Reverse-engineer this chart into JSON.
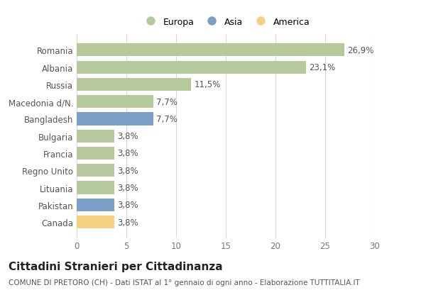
{
  "categories": [
    "Romania",
    "Albania",
    "Russia",
    "Macedonia d/N.",
    "Bangladesh",
    "Bulgaria",
    "Francia",
    "Regno Unito",
    "Lituania",
    "Pakistan",
    "Canada"
  ],
  "values": [
    26.9,
    23.1,
    11.5,
    7.7,
    7.7,
    3.8,
    3.8,
    3.8,
    3.8,
    3.8,
    3.8
  ],
  "labels": [
    "26,9%",
    "23,1%",
    "11,5%",
    "7,7%",
    "7,7%",
    "3,8%",
    "3,8%",
    "3,8%",
    "3,8%",
    "3,8%",
    "3,8%"
  ],
  "continent": [
    "Europa",
    "Europa",
    "Europa",
    "Europa",
    "Asia",
    "Europa",
    "Europa",
    "Europa",
    "Europa",
    "Asia",
    "America"
  ],
  "colors": {
    "Europa": "#b5c99a",
    "Asia": "#7b9fc7",
    "America": "#f5d080"
  },
  "title": "Cittadini Stranieri per Cittadinanza",
  "subtitle": "COMUNE DI PRETORO (CH) - Dati ISTAT al 1° gennaio di ogni anno - Elaborazione TUTTITALIA.IT",
  "xlim": [
    0,
    30
  ],
  "xticks": [
    0,
    5,
    10,
    15,
    20,
    25,
    30
  ],
  "background_color": "#ffffff",
  "bar_height": 0.75,
  "grid_color": "#d8d8d8",
  "label_fontsize": 8.5,
  "tick_fontsize": 8.5,
  "title_fontsize": 11,
  "subtitle_fontsize": 7.5,
  "legend_order": [
    "Europa",
    "Asia",
    "America"
  ]
}
